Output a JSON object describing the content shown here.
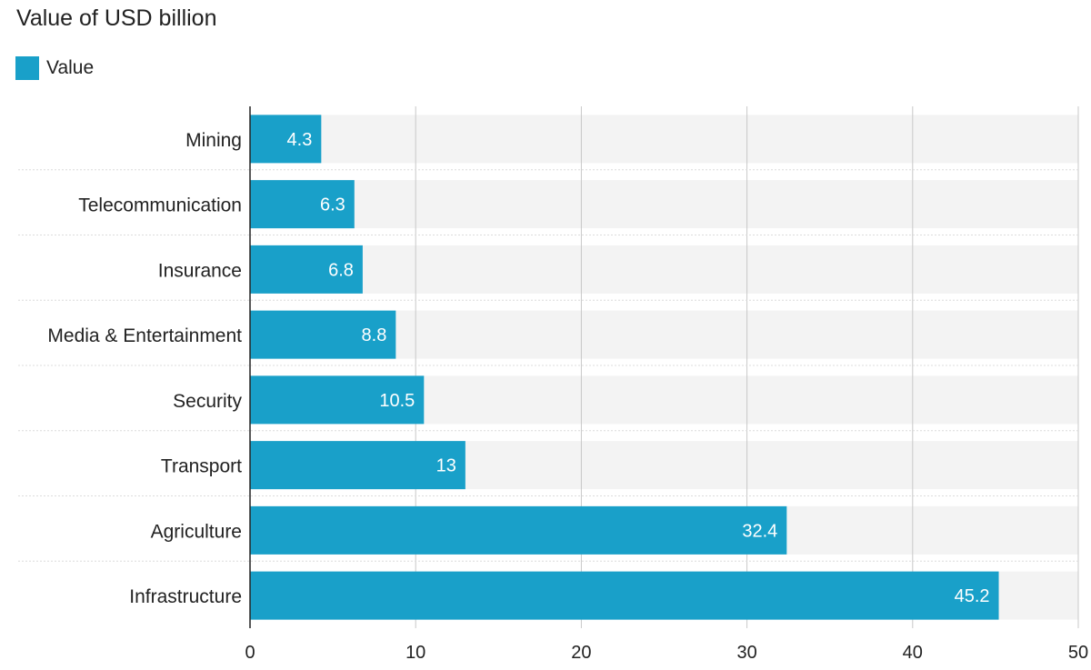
{
  "colors": {
    "bar": "#19a0c9",
    "track": "#f3f3f3",
    "gridline": "#c8c8c8",
    "separator": "#dcdcdc",
    "axis": "#222222"
  },
  "chart_data": {
    "type": "bar",
    "orientation": "horizontal",
    "title": "Value of USD billion",
    "legend": [
      {
        "name": "Value",
        "color": "#19a0c9"
      }
    ],
    "legend_position": "top-left",
    "categories": [
      "Mining",
      "Telecommunication",
      "Insurance",
      "Media & Entertainment",
      "Security",
      "Transport",
      "Agriculture",
      "Infrastructure"
    ],
    "series": [
      {
        "name": "Value",
        "values": [
          4.3,
          6.3,
          6.8,
          8.8,
          10.5,
          13,
          32.4,
          45.2
        ]
      }
    ],
    "value_labels": [
      "4.3",
      "6.3",
      "6.8",
      "8.8",
      "10.5",
      "13",
      "32.4",
      "45.2"
    ],
    "xlim": [
      0,
      50
    ],
    "xticks": [
      0,
      10,
      20,
      30,
      40,
      50
    ],
    "grid": true,
    "xlabel": "",
    "ylabel": ""
  }
}
